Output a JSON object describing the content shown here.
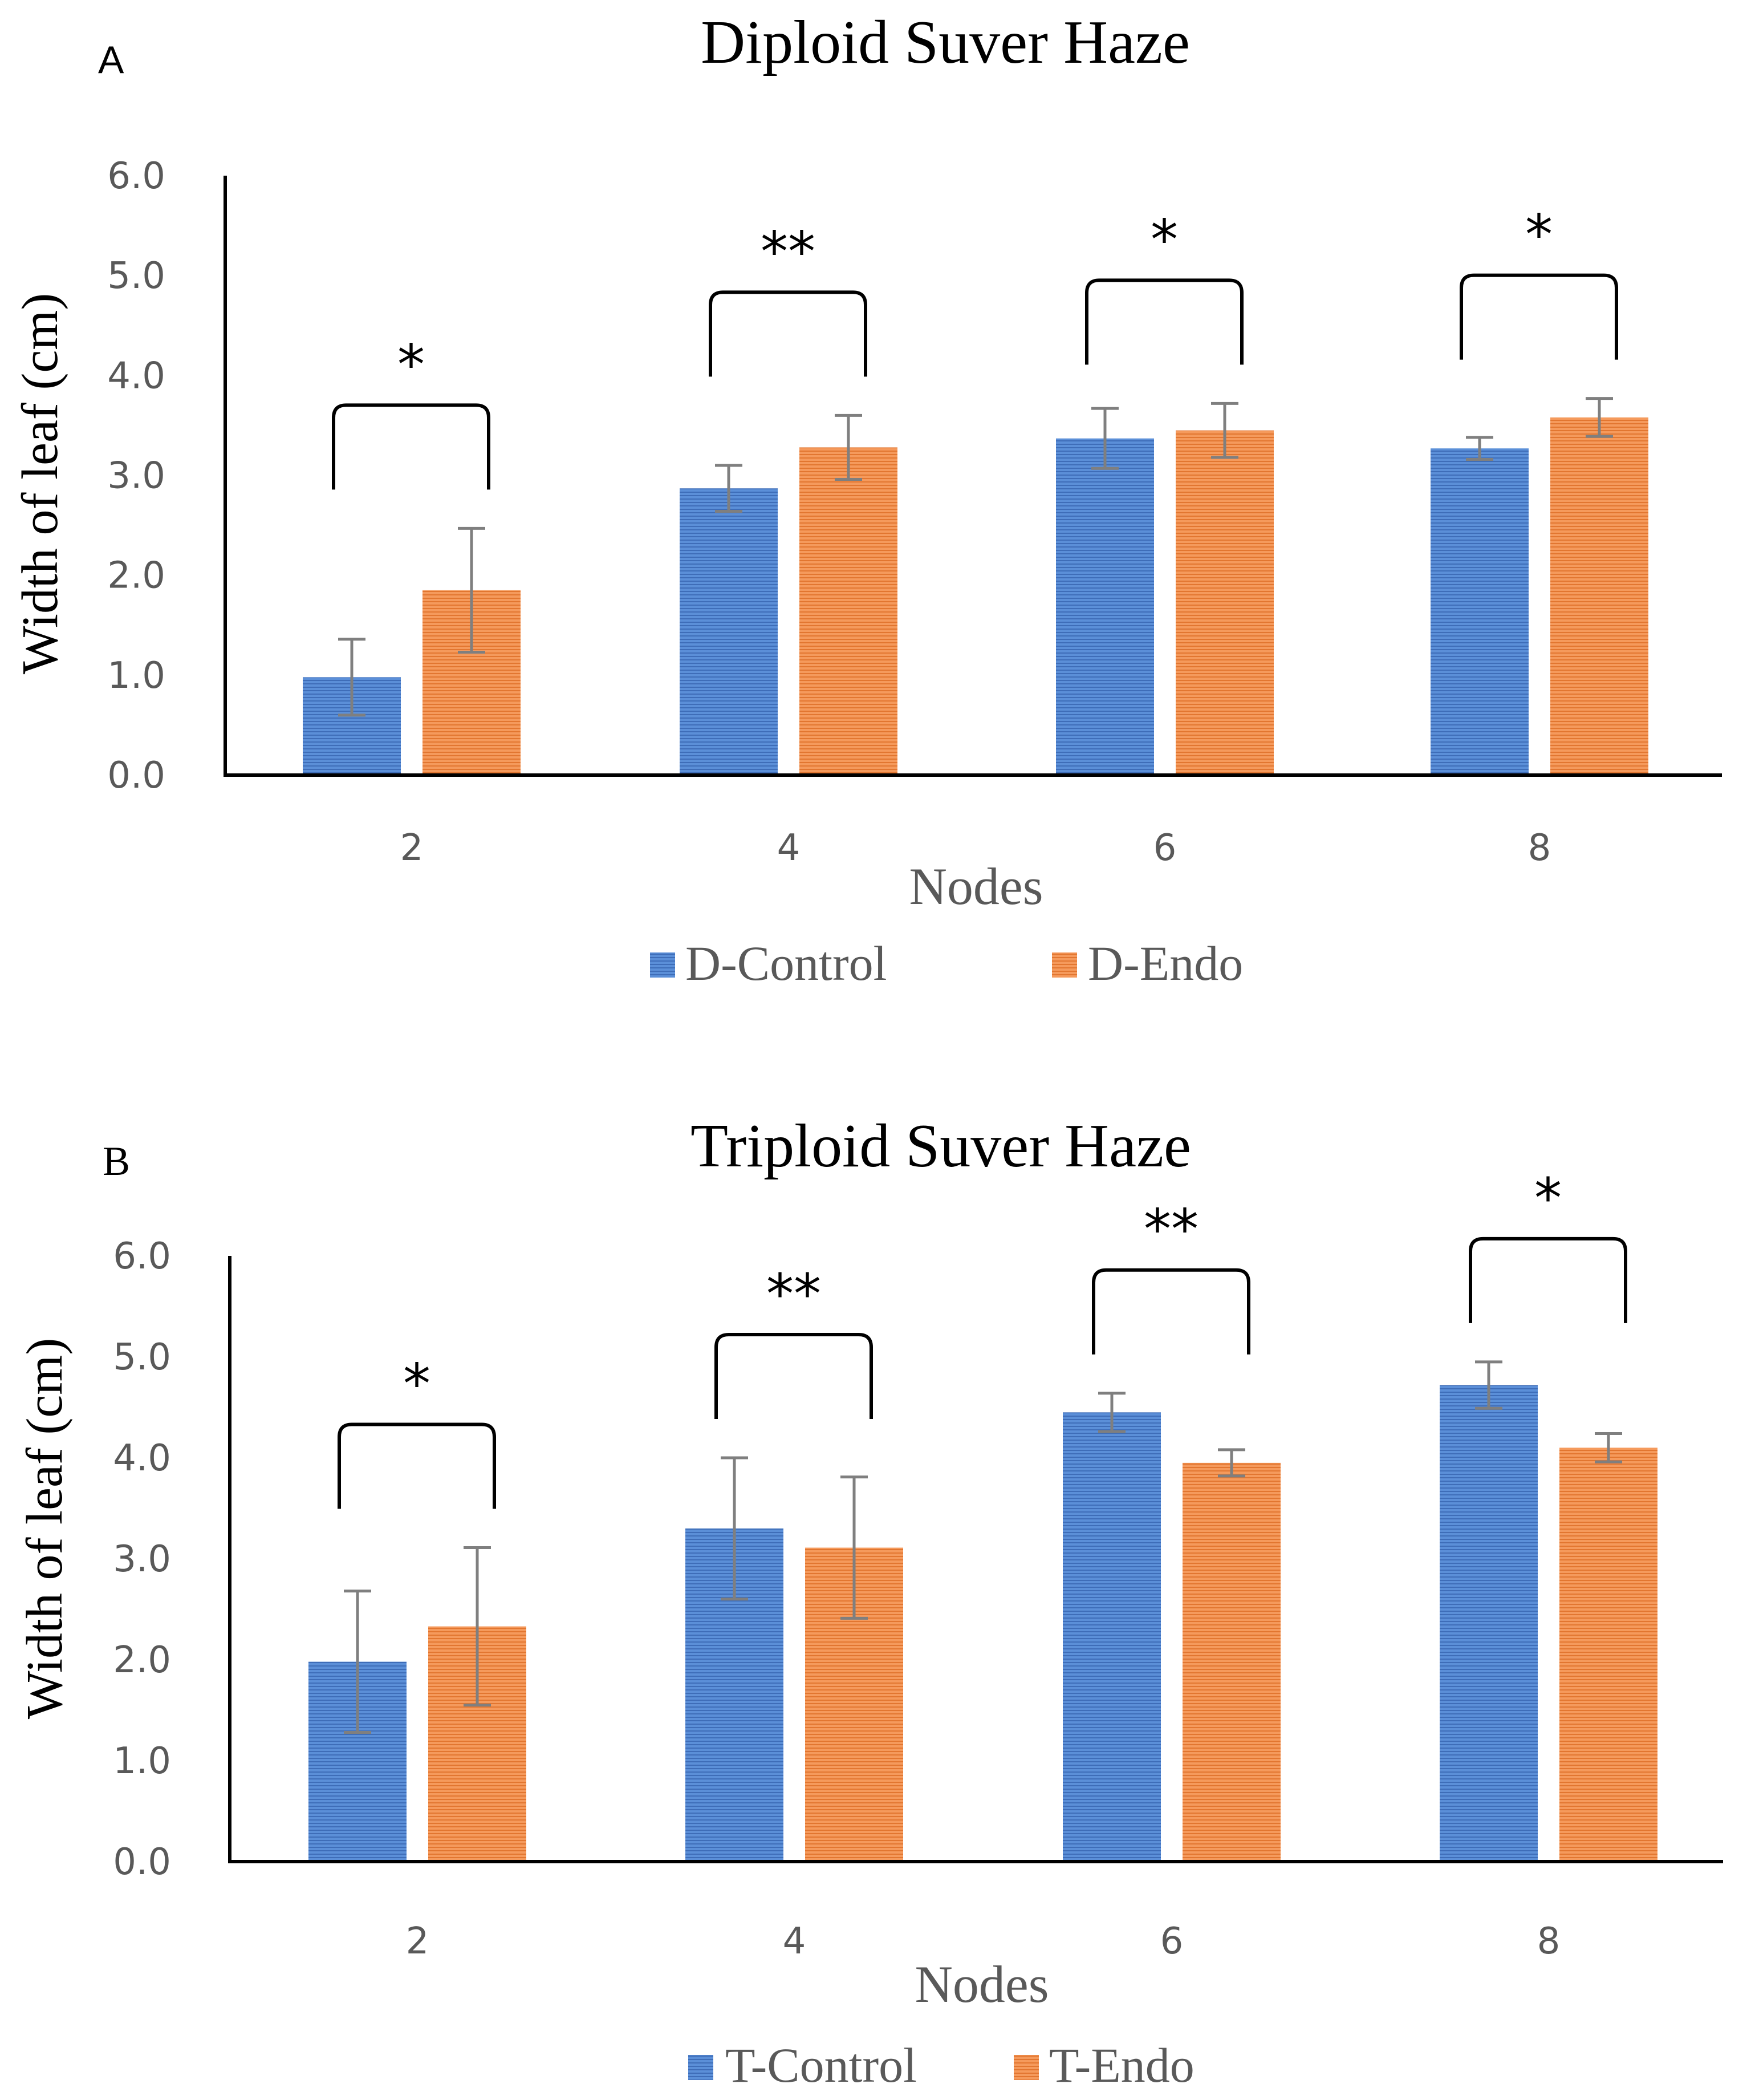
{
  "chart_data": [
    {
      "type": "bar",
      "panel_label": "A",
      "title": "Diploid Suver Haze",
      "xlabel": "Nodes",
      "ylabel": "Width of leaf (cm)",
      "categories": [
        "2",
        "4",
        "6",
        "8"
      ],
      "ylim": [
        0,
        6
      ],
      "yticks": [
        "0.0",
        "1.0",
        "2.0",
        "3.0",
        "4.0",
        "5.0",
        "6.0"
      ],
      "grid": false,
      "legend_position": "bottom-center",
      "series": [
        {
          "name": "D-Control",
          "color": "#4472C4",
          "values": [
            0.98,
            2.87,
            3.37,
            3.27
          ],
          "errors": [
            0.38,
            0.23,
            0.3,
            0.11
          ]
        },
        {
          "name": "D-Endo",
          "color": "#ED7D31",
          "values": [
            1.85,
            3.28,
            3.45,
            3.58
          ],
          "errors": [
            0.62,
            0.32,
            0.27,
            0.19
          ]
        }
      ],
      "significance": [
        "*",
        "**",
        "*",
        "*"
      ]
    },
    {
      "type": "bar",
      "panel_label": "B",
      "title": "Triploid Suver Haze",
      "xlabel": "Nodes",
      "ylabel": "Width of leaf (cm)",
      "categories": [
        "2",
        "4",
        "6",
        "8"
      ],
      "ylim": [
        0,
        6
      ],
      "yticks": [
        "0.0",
        "1.0",
        "2.0",
        "3.0",
        "4.0",
        "5.0",
        "6.0"
      ],
      "grid": false,
      "legend_position": "bottom-center",
      "series": [
        {
          "name": "T-Control",
          "color": "#4472C4",
          "values": [
            1.98,
            3.3,
            4.45,
            4.72
          ],
          "errors": [
            0.7,
            0.7,
            0.19,
            0.23
          ]
        },
        {
          "name": "T-Endo",
          "color": "#ED7D31",
          "values": [
            2.33,
            3.11,
            3.95,
            4.1
          ],
          "errors": [
            0.78,
            0.7,
            0.13,
            0.14
          ]
        }
      ],
      "significance": [
        "*",
        "**",
        "**",
        "*"
      ]
    }
  ]
}
